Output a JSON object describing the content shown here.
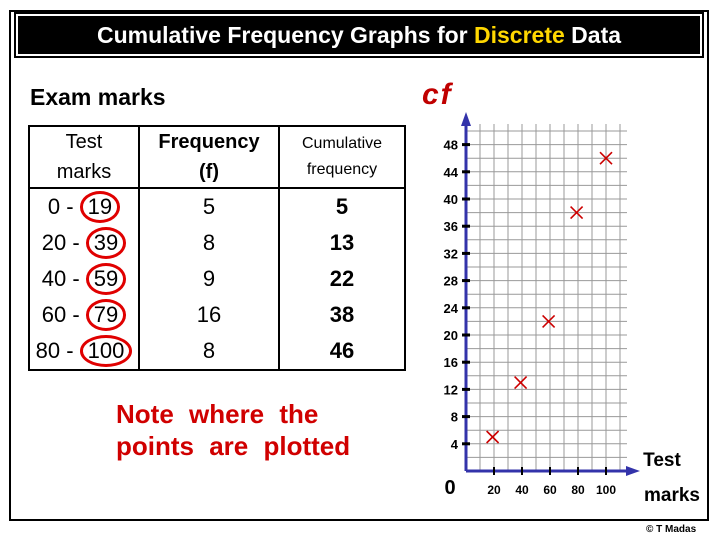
{
  "title": {
    "prefix": "Cumulative Frequency Graphs for ",
    "highlight": "Discrete",
    "suffix": " Data"
  },
  "subtitle": "Exam marks",
  "table": {
    "headers": {
      "marks": [
        "Test",
        "marks"
      ],
      "freq": [
        "Frequency",
        "(f)"
      ],
      "cum": [
        "Cumulative",
        "frequency"
      ]
    },
    "rows": [
      {
        "range_start": "0 - ",
        "range_end": "19",
        "freq": "5",
        "cum": "5"
      },
      {
        "range_start": "20 - ",
        "range_end": "39",
        "freq": "8",
        "cum": "13"
      },
      {
        "range_start": "40 - ",
        "range_end": "59",
        "freq": "9",
        "cum": "22"
      },
      {
        "range_start": "60 - ",
        "range_end": "79",
        "freq": "16",
        "cum": "38"
      },
      {
        "range_start": "80 - ",
        "range_end": "100",
        "freq": "8",
        "cum": "46"
      }
    ]
  },
  "note": [
    "Note where the",
    "points are plotted"
  ],
  "copyright": "© T Madas",
  "colors": {
    "accent": "#c00000",
    "highlight": "#ffd700",
    "grid": "#999999",
    "axis": "#3333aa",
    "marker": "#cc0000"
  },
  "chart_data": {
    "type": "scatter",
    "ylabel": "cf",
    "xlabel": "Test marks",
    "origin_label": "0",
    "x_ticks": [
      20,
      40,
      60,
      80,
      100
    ],
    "y_ticks": [
      4,
      8,
      12,
      16,
      20,
      24,
      28,
      32,
      36,
      40,
      44,
      48
    ],
    "xlim": [
      0,
      110
    ],
    "ylim": [
      0,
      50
    ],
    "grid": true,
    "points": [
      {
        "x": 19,
        "y": 5
      },
      {
        "x": 39,
        "y": 13
      },
      {
        "x": 59,
        "y": 22
      },
      {
        "x": 79,
        "y": 38
      },
      {
        "x": 100,
        "y": 46
      }
    ]
  }
}
